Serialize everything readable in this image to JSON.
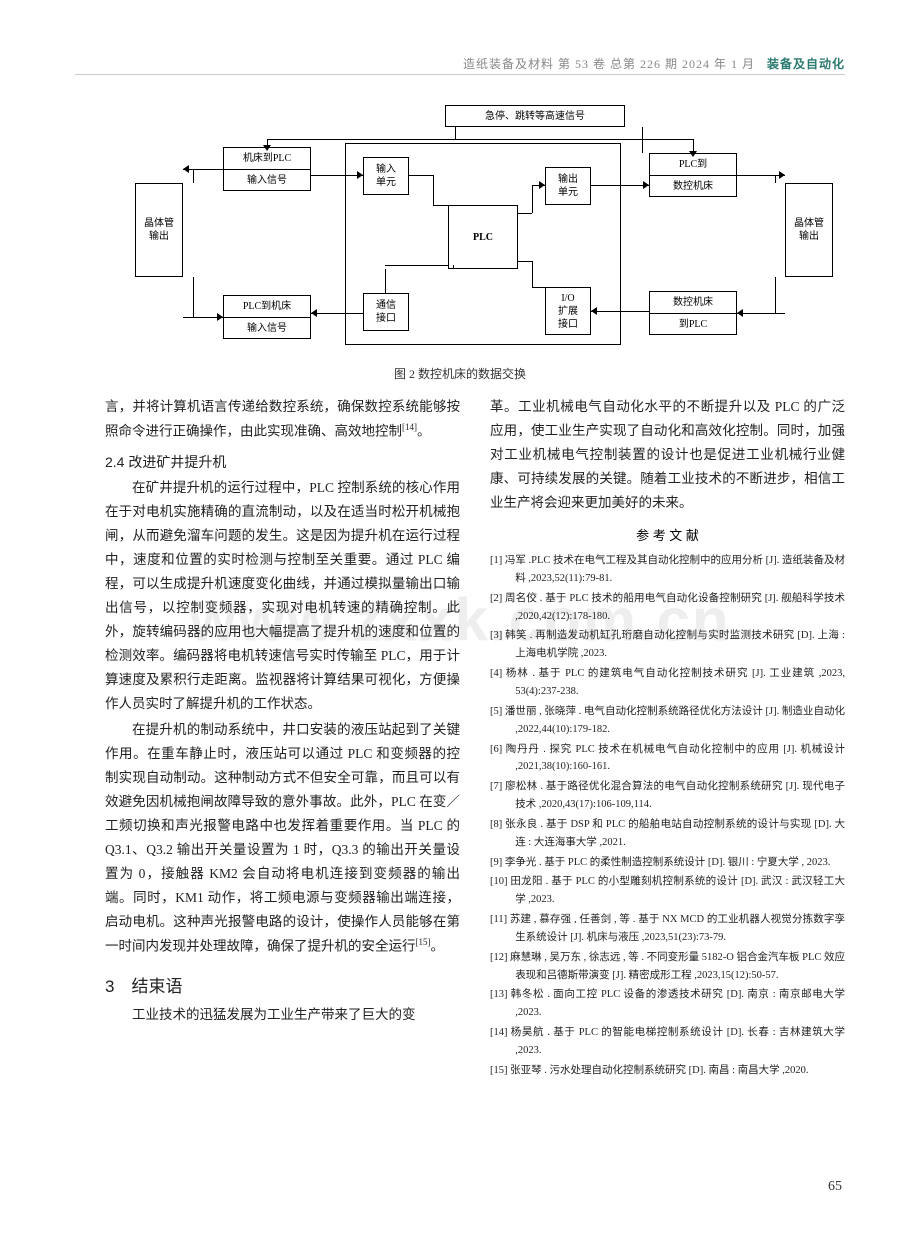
{
  "header": {
    "journal": "造纸装备及材料  第 53 卷  总第 226 期  2024 年 1 月",
    "section": "装备及自动化"
  },
  "watermark": "www.zxxk.com.cn",
  "figure": {
    "caption": "图 2  数控机床的数据交换",
    "boxes": {
      "topwide": "急停、跳转等高速信号",
      "left1a": "机床到PLC",
      "left1b": "输入信号",
      "left2a": "PLC到机床",
      "left2b": "输入信号",
      "leftTall": "晶体管\n输出",
      "rightTall": "晶体管\n输出",
      "inUnit": "输入\n单元",
      "outUnit": "输出\n单元",
      "plc": "PLC",
      "comm": "通信\n接口",
      "ioext": "I/O\n扩展\n接口",
      "right1a": "PLC到",
      "right1b": "数控机床",
      "right2a": "数控机床",
      "right2b": "到PLC"
    }
  },
  "col1": {
    "p1": "言，并将计算机语言传递给数控系统，确保数控系统能够按照命令进行正确操作，由此实现准确、高效地控制",
    "p1ref": "[14]",
    "p1end": "。",
    "h24": "2.4 改进矿井提升机",
    "p2": "在矿井提升机的运行过程中，PLC 控制系统的核心作用在于对电机实施精确的直流制动，以及在适当时松开机械抱闸，从而避免溜车问题的发生。这是因为提升机在运行过程中，速度和位置的实时检测与控制至关重要。通过 PLC 编程，可以生成提升机速度变化曲线，并通过模拟量输出口输出信号，以控制变频器，实现对电机转速的精确控制。此外，旋转编码器的应用也大幅提高了提升机的速度和位置的检测效率。编码器将电机转速信号实时传输至 PLC，用于计算速度及累积行走距离。监视器将计算结果可视化，方便操作人员实时了解提升机的工作状态。",
    "p3": "在提升机的制动系统中，井口安装的液压站起到了关键作用。在重车静止时，液压站可以通过 PLC 和变频器的控制实现自动制动。这种制动方式不但安全可靠，而且可以有效避免因机械抱闸故障导致的意外事故。此外，PLC 在变／工频切换和声光报警电路中也发挥着重要作用。当 PLC 的 Q3.1、Q3.2 输出开关量设置为 1 时，Q3.3 的输出开关量设置为 0，接触器 KM2 会自动将电机连接到变频器的输出端。同时，KM1 动作，将工频电源与变频器输出端连接，启动电机。这种声光报警电路的设计，使操作人员能够在第一时间内发现并处理故障，确保了提升机的安全运行",
    "p3ref": "[15]",
    "p3end": "。",
    "h3": "3　结束语",
    "p4": "工业技术的迅猛发展为工业生产带来了巨大的变"
  },
  "col2": {
    "p1": "革。工业机械电气自动化水平的不断提升以及 PLC 的广泛应用，使工业生产实现了自动化和高效化控制。同时，加强对工业机械电气控制装置的设计也是促进工业机械行业健康、可持续发展的关键。随着工业技术的不断进步，相信工业生产将会迎来更加美好的未来。",
    "refTitle": "参 考 文 献",
    "refs": [
      "[1] 冯军 .PLC 技术在电气工程及其自动化控制中的应用分析 [J]. 造纸装备及材料 ,2023,52(11):79-81.",
      "[2] 周名佼 . 基于 PLC 技术的船用电气自动化设备控制研究 [J]. 舰船科学技术 ,2020,42(12):178-180.",
      "[3] 韩笑 . 再制造发动机缸孔珩磨自动化控制与实时监测技术研究 [D]. 上海 : 上海电机学院 ,2023.",
      "[4] 杨林 . 基于 PLC 的建筑电气自动化控制技术研究 [J]. 工业建筑 ,2023, 53(4):237-238.",
      "[5] 潘世丽 , 张晓萍 . 电气自动化控制系统路径优化方法设计 [J]. 制造业自动化 ,2022,44(10):179-182.",
      "[6] 陶丹丹 . 探究 PLC 技术在机械电气自动化控制中的应用 [J]. 机械设计 ,2021,38(10):160-161.",
      "[7] 廖松林 . 基于路径优化混合算法的电气自动化控制系统研究 [J]. 现代电子技术 ,2020,43(17):106-109,114.",
      "[8] 张永良 . 基于 DSP 和 PLC 的船舶电站自动控制系统的设计与实现 [D]. 大连 : 大连海事大学 ,2021.",
      "[9] 李争光 . 基于 PLC 的柔性制造控制系统设计 [D]. 银川 : 宁夏大学 , 2023.",
      "[10] 田龙阳 . 基于 PLC 的小型雕刻机控制系统的设计 [D]. 武汉 : 武汉轻工大学 ,2023.",
      "[11] 苏建 , 慕存强 , 任善剑 , 等 . 基于 NX MCD 的工业机器人视觉分拣数字孪生系统设计 [J]. 机床与液压 ,2023,51(23):73-79.",
      "[12] 麻慧琳 , 吴万东 , 徐志远 , 等 . 不同变形量 5182-O 铝合金汽车板 PLC 效应表现和吕德斯带演变 [J]. 精密成形工程 ,2023,15(12):50-57.",
      "[13] 韩冬松 . 面向工控 PLC 设备的渗透技术研究 [D]. 南京 : 南京邮电大学 ,2023.",
      "[14] 杨昊航 . 基于 PLC 的智能电梯控制系统设计 [D]. 长春 : 吉林建筑大学 ,2023.",
      "[15] 张亚琴 . 污水处理自动化控制系统研究 [D]. 南昌 : 南昌大学 ,2020."
    ]
  },
  "pageNum": "65"
}
